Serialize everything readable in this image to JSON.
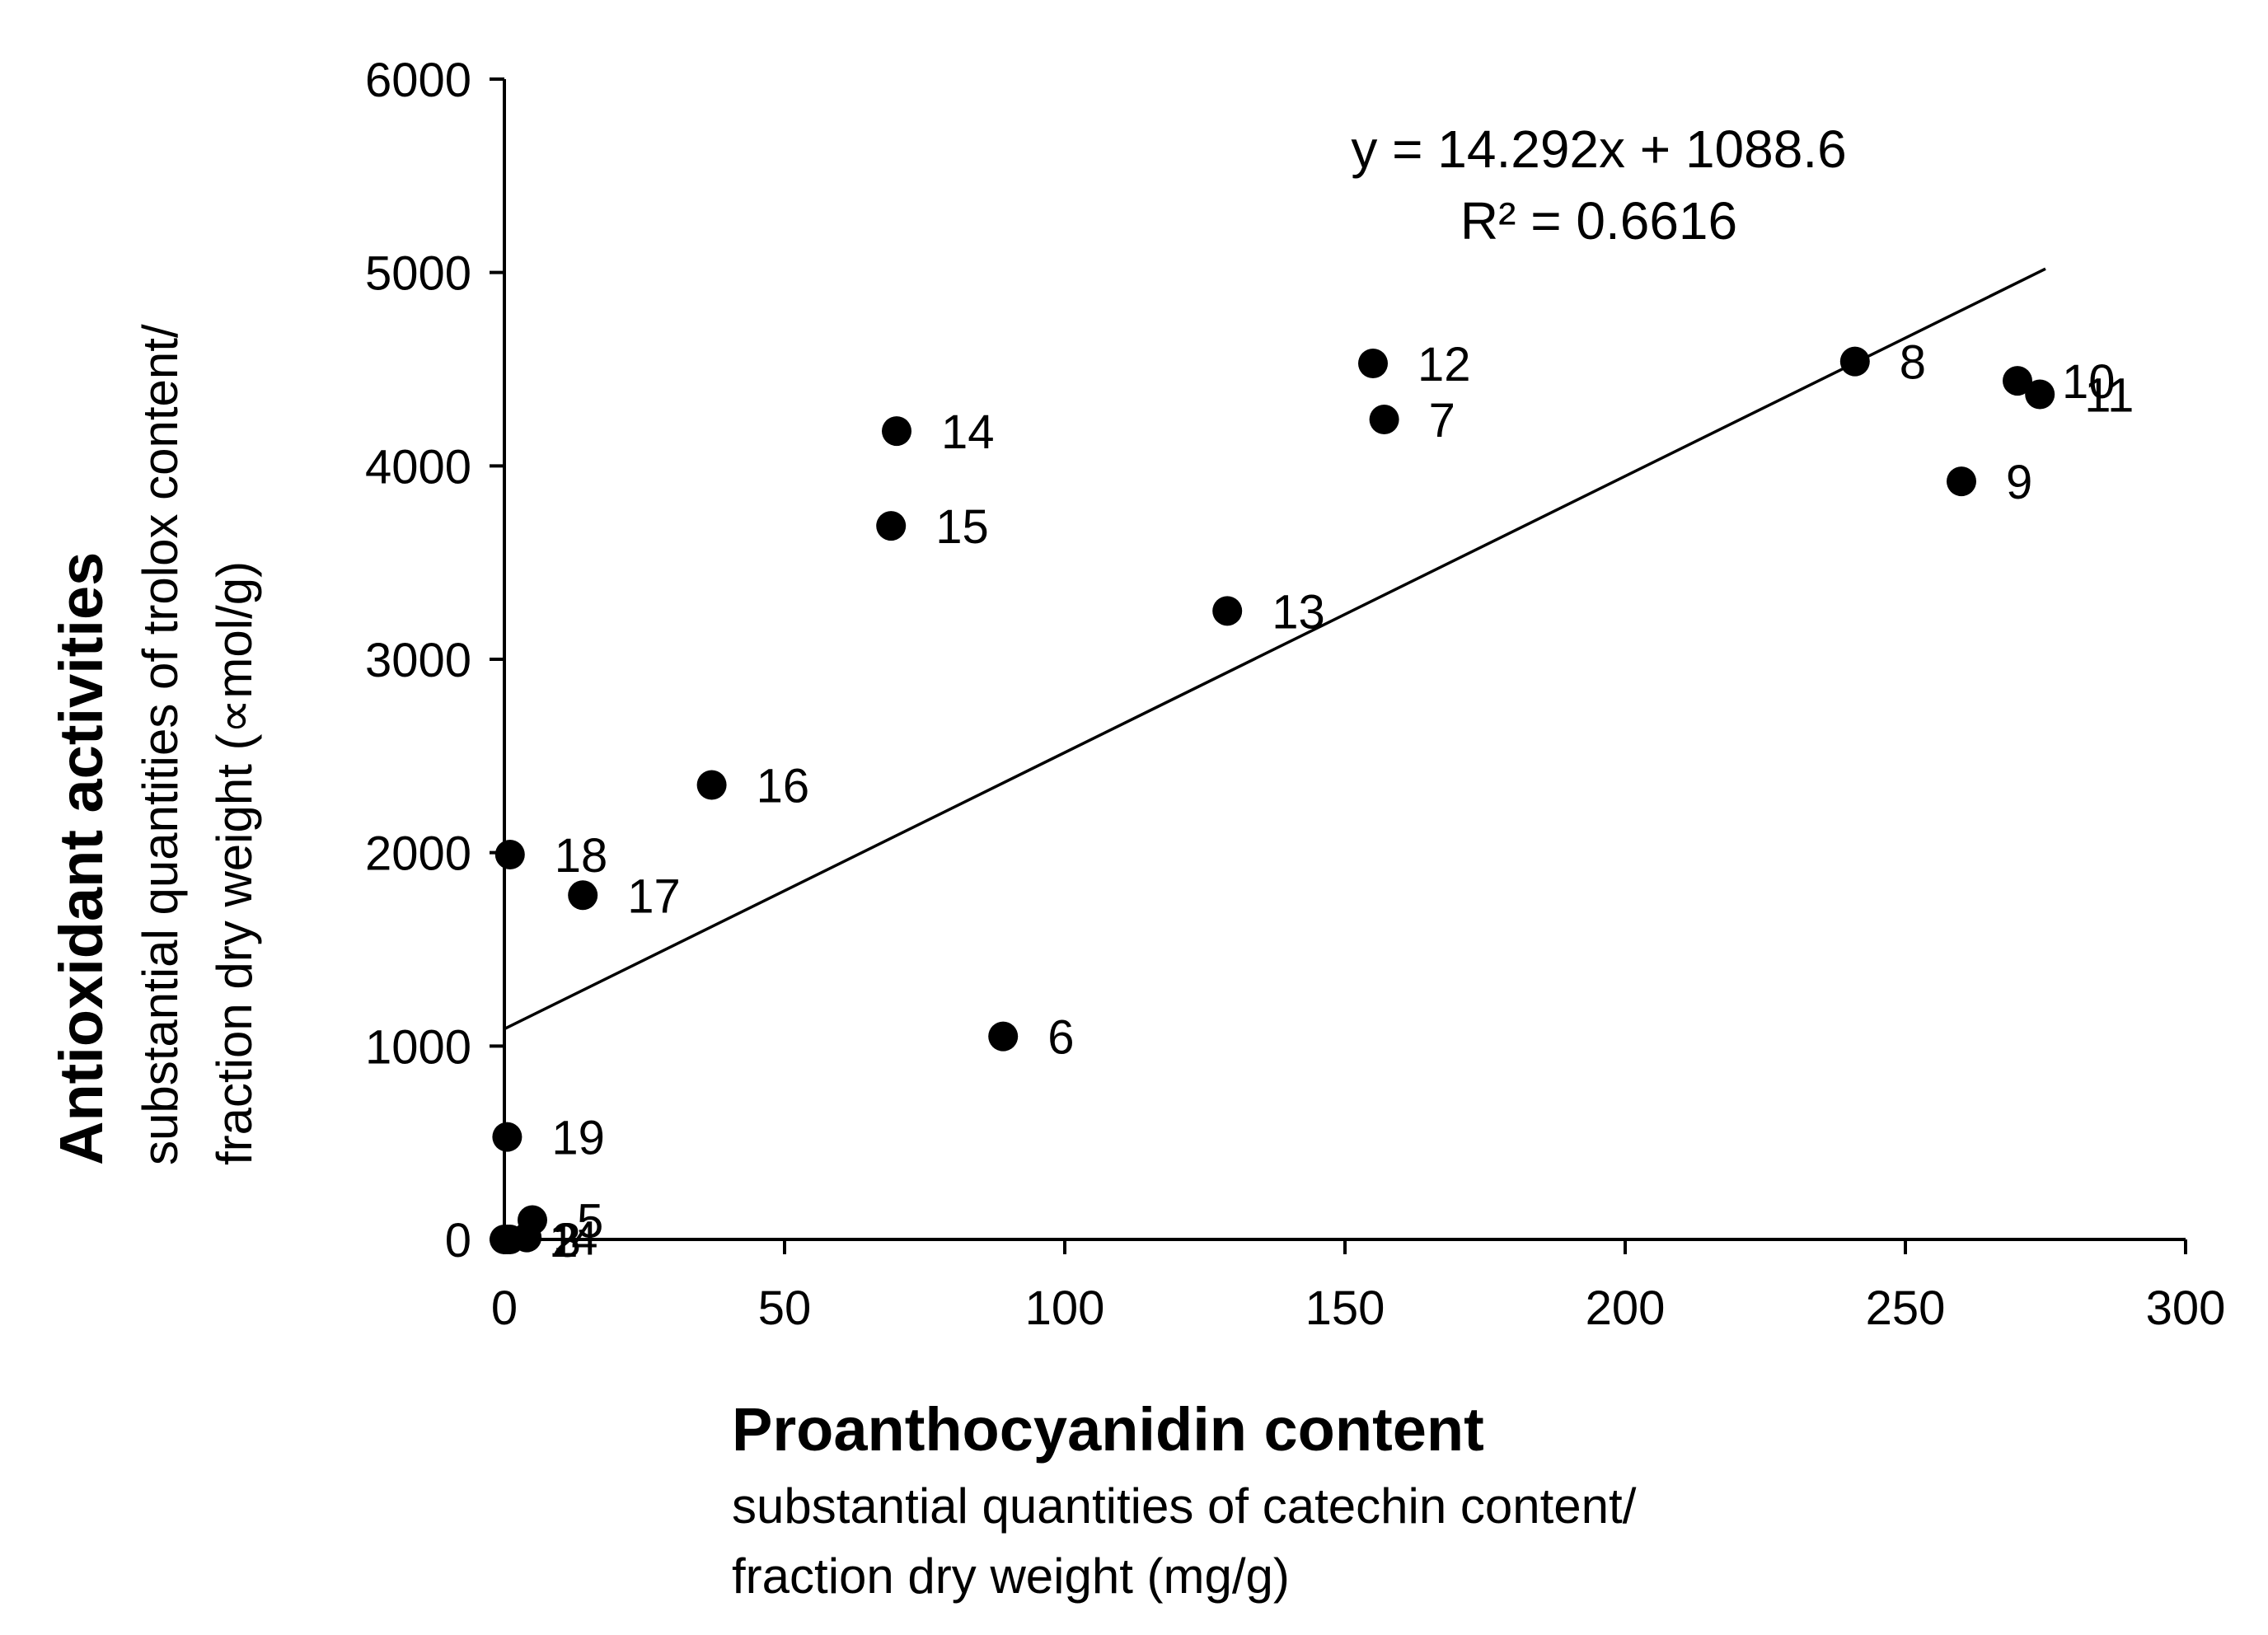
{
  "chart_data": {
    "type": "scatter",
    "title": "",
    "xlabel": "Proanthocyanidin content",
    "xlabel_sub": [
      "substantial quantities of catechin content/",
      "fraction dry weight (mg/g)"
    ],
    "ylabel": "Antioxidant activities",
    "ylabel_sub": [
      "substantial quantities of trolox content/",
      "fraction dry weight (∝mol/g)"
    ],
    "xlim": [
      0,
      300
    ],
    "ylim": [
      0,
      6000
    ],
    "xticks": [
      0,
      50,
      100,
      150,
      200,
      250,
      300
    ],
    "yticks": [
      0,
      1000,
      2000,
      3000,
      4000,
      5000,
      6000
    ],
    "grid": false,
    "points": [
      {
        "label": "1",
        "x": 0,
        "y": 0
      },
      {
        "label": "2",
        "x": 0.5,
        "y": 0
      },
      {
        "label": "3",
        "x": 1,
        "y": 0
      },
      {
        "label": "4",
        "x": 4,
        "y": 10
      },
      {
        "label": "5",
        "x": 5,
        "y": 100
      },
      {
        "label": "6",
        "x": 89,
        "y": 1050
      },
      {
        "label": "7",
        "x": 157,
        "y": 4240
      },
      {
        "label": "8",
        "x": 241,
        "y": 4540
      },
      {
        "label": "9",
        "x": 260,
        "y": 3920
      },
      {
        "label": "10",
        "x": 270,
        "y": 4440
      },
      {
        "label": "11",
        "x": 274,
        "y": 4370
      },
      {
        "label": "12",
        "x": 155,
        "y": 4530
      },
      {
        "label": "13",
        "x": 129,
        "y": 3250
      },
      {
        "label": "14",
        "x": 70,
        "y": 4180
      },
      {
        "label": "15",
        "x": 69,
        "y": 3690
      },
      {
        "label": "16",
        "x": 37,
        "y": 2350
      },
      {
        "label": "17",
        "x": 14,
        "y": 1780
      },
      {
        "label": "18",
        "x": 1,
        "y": 1990
      },
      {
        "label": "19",
        "x": 0.5,
        "y": 530
      }
    ],
    "trendline": {
      "slope": 14.292,
      "intercept": 1088.6,
      "x_range": [
        0,
        275
      ],
      "equation": "y = 14.292x + 1088.6",
      "r2": "R² = 0.6616"
    }
  }
}
